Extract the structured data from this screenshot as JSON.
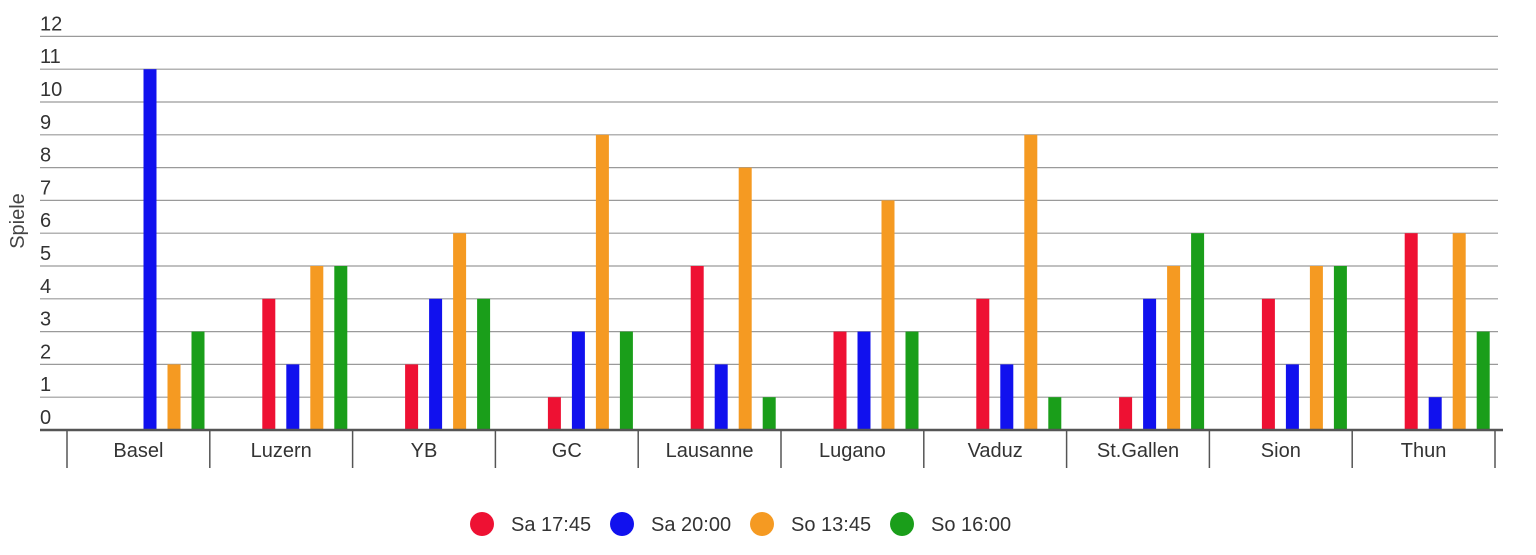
{
  "chart_data": {
    "type": "bar",
    "ylabel": "Spiele",
    "xlabel": "",
    "ylim": [
      0,
      12
    ],
    "yticks": [
      0,
      1,
      2,
      3,
      4,
      5,
      6,
      7,
      8,
      9,
      10,
      11,
      12
    ],
    "grid": true,
    "legend_position": "bottom",
    "categories": [
      "Basel",
      "Luzern",
      "YB",
      "GC",
      "Lausanne",
      "Lugano",
      "Vaduz",
      "St.Gallen",
      "Sion",
      "Thun"
    ],
    "series": [
      {
        "name": "Sa 17:45",
        "color": "#ee1133",
        "values": [
          0,
          4,
          2,
          1,
          5,
          3,
          4,
          1,
          4,
          6
        ]
      },
      {
        "name": "Sa 20:00",
        "color": "#1111ee",
        "values": [
          11,
          2,
          4,
          3,
          2,
          3,
          2,
          4,
          2,
          1
        ]
      },
      {
        "name": "So 13:45",
        "color": "#f59a22",
        "values": [
          2,
          5,
          6,
          9,
          8,
          7,
          9,
          5,
          5,
          6
        ]
      },
      {
        "name": "So 16:00",
        "color": "#1a9e1a",
        "values": [
          3,
          5,
          4,
          3,
          1,
          3,
          1,
          6,
          5,
          3
        ]
      }
    ]
  }
}
